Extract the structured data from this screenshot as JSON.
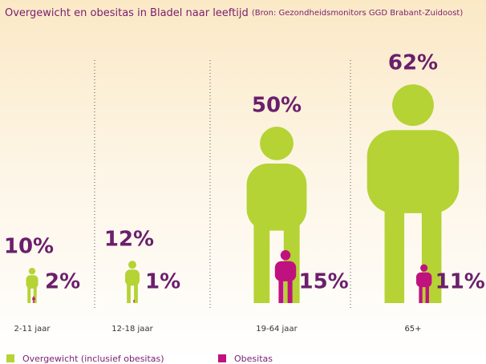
{
  "chart_data": {
    "type": "pictogram",
    "title": "Overgewicht en obesitas in Bladel naar leeftijd",
    "subtitle": "(Bron: Gezondheidsmonitors GGD Brabant-Zuidoost)",
    "categories": [
      "2-11 jaar",
      "12-18 jaar",
      "19-64 jaar",
      "65+"
    ],
    "series": [
      {
        "name": "Overgewicht (inclusief obesitas)",
        "color": "#b5d334",
        "values": [
          10,
          12,
          50,
          62
        ],
        "value_labels": [
          "10%",
          "12%",
          "50%",
          "62%"
        ]
      },
      {
        "name": "Obesitas",
        "color": "#c0127f",
        "values": [
          2,
          1,
          15,
          11
        ],
        "value_labels": [
          "2%",
          "1%",
          "15%",
          "11%"
        ]
      }
    ]
  }
}
